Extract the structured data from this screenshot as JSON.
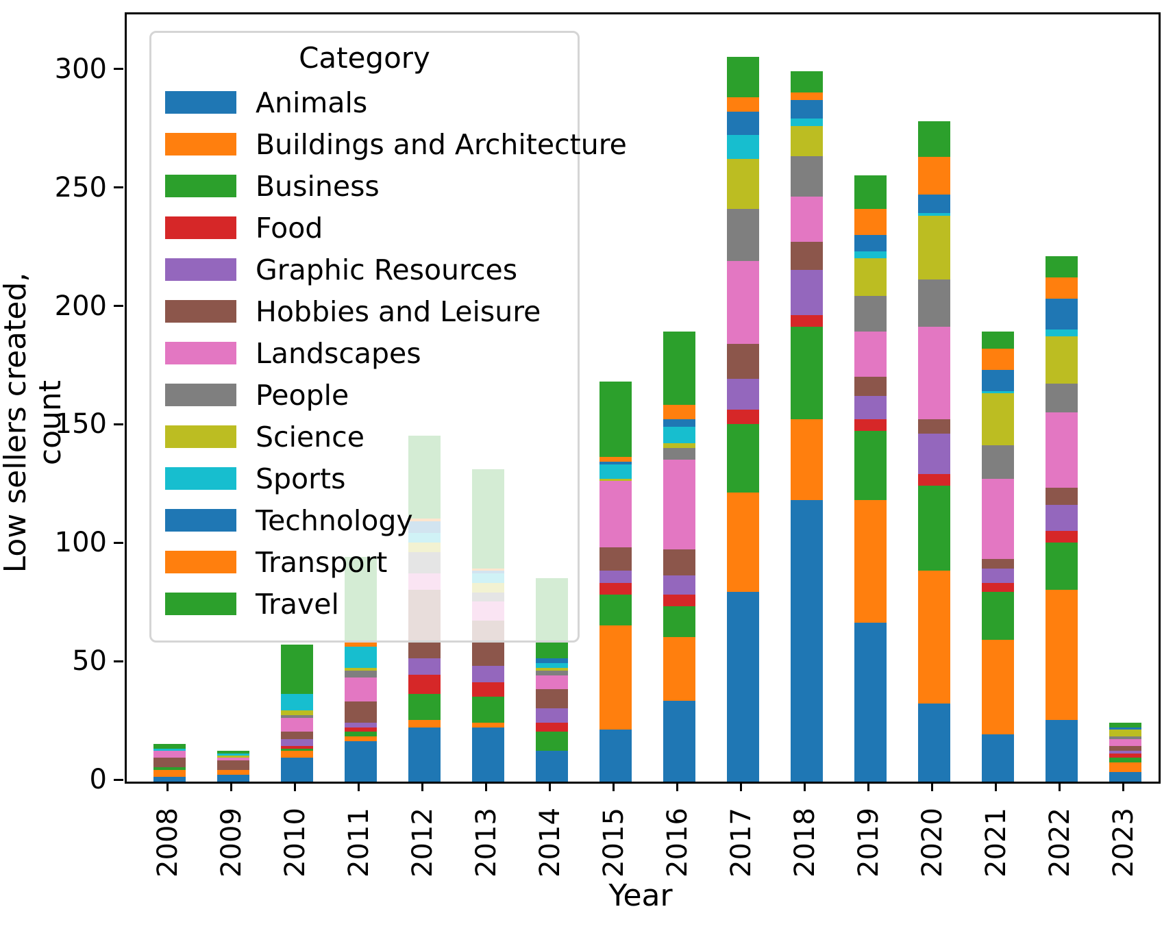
{
  "axes": {
    "ylabel": "Low sellers created, count",
    "xlabel": "Year",
    "y_ticks": [
      0,
      50,
      100,
      150,
      200,
      250,
      300
    ],
    "ylim": [
      0,
      324
    ]
  },
  "legend": {
    "title": "Category"
  },
  "chart_data": {
    "type": "bar",
    "stacked": true,
    "title": "",
    "xlabel": "Year",
    "ylabel": "Low sellers created, count",
    "ylim": [
      0,
      324
    ],
    "grid": false,
    "legend_position": "upper left",
    "categories": [
      "2008",
      "2009",
      "2010",
      "2011",
      "2012",
      "2013",
      "2014",
      "2015",
      "2016",
      "2017",
      "2018",
      "2019",
      "2020",
      "2021",
      "2022",
      "2023"
    ],
    "series": [
      {
        "name": "Animals",
        "color": "#1f77b4",
        "values": [
          2,
          3,
          10,
          17,
          23,
          23,
          13,
          22,
          34,
          80,
          119,
          67,
          33,
          20,
          26,
          4
        ]
      },
      {
        "name": "Buildings and Architecture",
        "color": "#ff7f0e",
        "values": [
          3,
          2,
          3,
          2,
          3,
          2,
          0,
          44,
          27,
          42,
          34,
          52,
          56,
          40,
          55,
          4
        ]
      },
      {
        "name": "Business",
        "color": "#2ca02c",
        "values": [
          1,
          0,
          1,
          2,
          11,
          11,
          8,
          13,
          13,
          29,
          39,
          29,
          36,
          20,
          20,
          2
        ]
      },
      {
        "name": "Food",
        "color": "#d62728",
        "values": [
          0,
          0,
          1,
          2,
          8,
          6,
          4,
          5,
          5,
          6,
          5,
          5,
          5,
          4,
          5,
          2
        ]
      },
      {
        "name": "Graphic Resources",
        "color": "#9467bd",
        "values": [
          0,
          0,
          3,
          2,
          7,
          7,
          6,
          5,
          8,
          13,
          19,
          10,
          17,
          6,
          11,
          1
        ]
      },
      {
        "name": "Hobbies and Leisure",
        "color": "#8c564b",
        "values": [
          4,
          4,
          3,
          9,
          29,
          19,
          8,
          10,
          11,
          15,
          12,
          8,
          6,
          4,
          7,
          2
        ]
      },
      {
        "name": "Landscapes",
        "color": "#e377c2",
        "values": [
          3,
          1,
          6,
          10,
          7,
          8,
          6,
          28,
          38,
          35,
          19,
          19,
          39,
          34,
          32,
          3
        ]
      },
      {
        "name": "People",
        "color": "#7f7f7f",
        "values": [
          0,
          0,
          1,
          3,
          9,
          4,
          2,
          0,
          5,
          22,
          17,
          15,
          20,
          14,
          12,
          1
        ]
      },
      {
        "name": "Science",
        "color": "#bcbd22",
        "values": [
          0,
          1,
          2,
          1,
          4,
          4,
          1,
          1,
          2,
          21,
          13,
          16,
          27,
          22,
          20,
          3
        ]
      },
      {
        "name": "Sports",
        "color": "#17becf",
        "values": [
          1,
          1,
          7,
          9,
          4,
          4,
          2,
          6,
          7,
          10,
          3,
          3,
          1,
          1,
          3,
          0
        ]
      },
      {
        "name": "Technology",
        "color": "#1f77b4",
        "values": [
          0,
          0,
          0,
          0,
          5,
          1,
          2,
          1,
          3,
          10,
          8,
          7,
          8,
          9,
          13,
          1
        ]
      },
      {
        "name": "Transport",
        "color": "#ff7f0e",
        "values": [
          0,
          0,
          0,
          2,
          1,
          1,
          0,
          2,
          6,
          6,
          3,
          11,
          16,
          9,
          9,
          0
        ]
      },
      {
        "name": "Travel",
        "color": "#2ca02c",
        "values": [
          2,
          1,
          21,
          36,
          35,
          42,
          34,
          32,
          31,
          17,
          9,
          14,
          15,
          7,
          9,
          2
        ]
      }
    ]
  }
}
